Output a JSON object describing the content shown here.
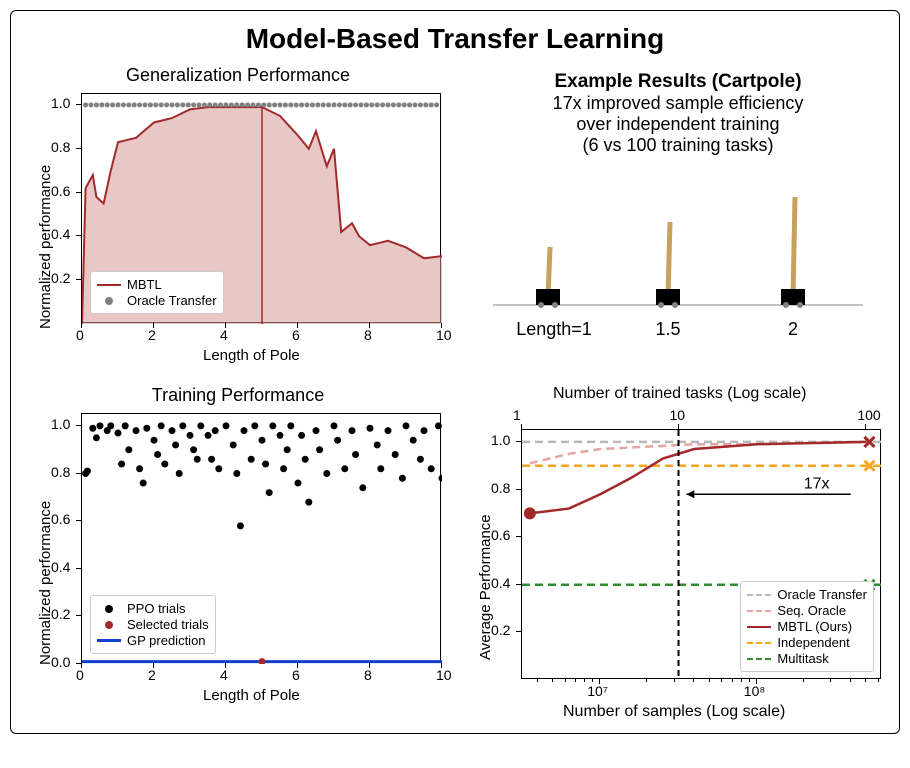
{
  "main_title": "Model-Based Transfer Learning",
  "top_left": {
    "title": "Generalization Performance",
    "xlabel": "Length of Pole",
    "ylabel": "Normalized performance",
    "xlim": [
      0,
      10
    ],
    "ylim": [
      0,
      1.05
    ],
    "xticks": [
      0,
      2,
      4,
      6,
      8,
      10
    ],
    "yticks": [
      0.2,
      0.4,
      0.6,
      0.8,
      1.0
    ],
    "mbtl_color": "#a22a2a",
    "mbtl_fill": "#d89999",
    "oracle_dot_color": "#808080",
    "vertical_line_x": 5.0,
    "mbtl_data": [
      [
        0,
        0
      ],
      [
        0.1,
        0.62
      ],
      [
        0.3,
        0.68
      ],
      [
        0.4,
        0.58
      ],
      [
        0.6,
        0.55
      ],
      [
        0.8,
        0.7
      ],
      [
        1.0,
        0.83
      ],
      [
        1.5,
        0.85
      ],
      [
        2.0,
        0.92
      ],
      [
        2.5,
        0.94
      ],
      [
        3.0,
        0.98
      ],
      [
        3.5,
        0.99
      ],
      [
        4.0,
        0.99
      ],
      [
        4.5,
        0.99
      ],
      [
        5.0,
        0.99
      ],
      [
        5.5,
        0.95
      ],
      [
        6.0,
        0.86
      ],
      [
        6.3,
        0.8
      ],
      [
        6.5,
        0.88
      ],
      [
        6.8,
        0.72
      ],
      [
        7.0,
        0.8
      ],
      [
        7.2,
        0.42
      ],
      [
        7.5,
        0.46
      ],
      [
        7.7,
        0.4
      ],
      [
        8.0,
        0.36
      ],
      [
        8.5,
        0.38
      ],
      [
        9.0,
        0.35
      ],
      [
        9.5,
        0.3
      ],
      [
        10.0,
        0.31
      ]
    ],
    "oracle_y": 1.0,
    "legend": {
      "mbtl": "MBTL",
      "oracle": "Oracle Transfer"
    }
  },
  "top_right": {
    "title": "Example Results (Cartpole)",
    "line1": "17x improved sample efficiency",
    "line2": "over independent training",
    "line3": "(6 vs 100 training tasks)",
    "cart_lengths": [
      1,
      1.5,
      2
    ],
    "cart_labels": [
      "Length=1",
      "1.5",
      "2"
    ],
    "pole_color": "#c9a15e",
    "cart_color": "#000000",
    "wheel_color": "#808080",
    "line_color": "#888888"
  },
  "bottom_left": {
    "title": "Training Performance",
    "xlabel": "Length of Pole",
    "ylabel": "Normalized performance",
    "xlim": [
      0,
      10
    ],
    "ylim": [
      0,
      1.05
    ],
    "xticks": [
      0,
      2,
      4,
      6,
      8,
      10
    ],
    "yticks": [
      0.0,
      0.2,
      0.4,
      0.6,
      0.8,
      1.0
    ],
    "dot_color": "#000000",
    "selected_color": "#a22a2a",
    "gp_color": "#1040d0",
    "scatter": [
      [
        0.1,
        0.8
      ],
      [
        0.15,
        0.81
      ],
      [
        0.3,
        0.99
      ],
      [
        0.4,
        0.95
      ],
      [
        0.5,
        1.0
      ],
      [
        0.7,
        0.98
      ],
      [
        0.8,
        1.0
      ],
      [
        1.0,
        0.97
      ],
      [
        1.1,
        0.84
      ],
      [
        1.2,
        1.0
      ],
      [
        1.3,
        0.9
      ],
      [
        1.5,
        0.98
      ],
      [
        1.6,
        0.82
      ],
      [
        1.7,
        0.76
      ],
      [
        1.8,
        0.99
      ],
      [
        2.0,
        0.94
      ],
      [
        2.1,
        0.88
      ],
      [
        2.2,
        1.0
      ],
      [
        2.3,
        0.84
      ],
      [
        2.5,
        0.98
      ],
      [
        2.6,
        0.92
      ],
      [
        2.7,
        0.8
      ],
      [
        2.8,
        1.0
      ],
      [
        3.0,
        0.96
      ],
      [
        3.1,
        0.9
      ],
      [
        3.2,
        0.86
      ],
      [
        3.3,
        1.0
      ],
      [
        3.5,
        0.96
      ],
      [
        3.6,
        0.86
      ],
      [
        3.7,
        0.98
      ],
      [
        3.8,
        0.82
      ],
      [
        4.0,
        1.0
      ],
      [
        4.2,
        0.92
      ],
      [
        4.3,
        0.8
      ],
      [
        4.4,
        0.58
      ],
      [
        4.5,
        0.98
      ],
      [
        4.7,
        0.86
      ],
      [
        4.8,
        1.0
      ],
      [
        5.0,
        0.94
      ],
      [
        5.1,
        0.84
      ],
      [
        5.2,
        0.72
      ],
      [
        5.3,
        1.0
      ],
      [
        5.5,
        0.96
      ],
      [
        5.6,
        0.82
      ],
      [
        5.7,
        0.9
      ],
      [
        5.8,
        1.0
      ],
      [
        6.0,
        0.76
      ],
      [
        6.1,
        0.96
      ],
      [
        6.2,
        0.86
      ],
      [
        6.3,
        0.68
      ],
      [
        6.5,
        0.98
      ],
      [
        6.6,
        0.9
      ],
      [
        6.8,
        0.8
      ],
      [
        7.0,
        1.0
      ],
      [
        7.1,
        0.94
      ],
      [
        7.3,
        0.82
      ],
      [
        7.5,
        0.98
      ],
      [
        7.6,
        0.88
      ],
      [
        7.8,
        0.74
      ],
      [
        8.0,
        0.99
      ],
      [
        8.2,
        0.92
      ],
      [
        8.3,
        0.82
      ],
      [
        8.5,
        0.98
      ],
      [
        8.7,
        0.88
      ],
      [
        8.9,
        0.78
      ],
      [
        9.0,
        1.0
      ],
      [
        9.2,
        0.94
      ],
      [
        9.4,
        0.86
      ],
      [
        9.5,
        0.98
      ],
      [
        9.7,
        0.82
      ],
      [
        9.9,
        1.0
      ],
      [
        10.0,
        0.78
      ]
    ],
    "selected": [
      [
        5.0,
        0.01
      ]
    ],
    "gp_line": [
      [
        0,
        0.01
      ],
      [
        4.5,
        0.01
      ],
      [
        5.0,
        0.01
      ],
      [
        5.5,
        0.01
      ],
      [
        10,
        0.01
      ]
    ],
    "legend": {
      "ppo": "PPO trials",
      "selected": "Selected trials",
      "gp": "GP prediction"
    }
  },
  "bottom_right": {
    "ylabel": "Average Performance",
    "xlabel_bottom": "Number of samples (Log scale)",
    "xlabel_top": "Number of trained tasks (Log scale)",
    "ylim": [
      0,
      1.05
    ],
    "yticks": [
      0.2,
      0.4,
      0.6,
      0.8,
      1.0
    ],
    "xlim_log": [
      6.5,
      8.8
    ],
    "xticks_bottom": [
      {
        "pos": 7,
        "label": "10⁷"
      },
      {
        "pos": 8,
        "label": "10⁸"
      }
    ],
    "xticks_top": [
      {
        "pos": 6.5,
        "label": "1"
      },
      {
        "pos": 7.5,
        "label": "10"
      },
      {
        "pos": 8.7,
        "label": "100"
      }
    ],
    "colors": {
      "oracle": "#b8b8b8",
      "seqoracle": "#e5a5a5",
      "mbtl": "#a22a2a",
      "independent": "#f5a623",
      "multitask": "#2e8b2e",
      "vline": "#000000"
    },
    "oracle_y": 1.0,
    "independent_y": 0.9,
    "multitask_y": 0.4,
    "seqoracle_data": [
      [
        6.55,
        0.91
      ],
      [
        6.8,
        0.95
      ],
      [
        7.0,
        0.97
      ],
      [
        7.3,
        0.98
      ],
      [
        7.6,
        0.99
      ],
      [
        8.0,
        0.99
      ],
      [
        8.7,
        1.0
      ]
    ],
    "mbtl_data": [
      [
        6.55,
        0.7
      ],
      [
        6.8,
        0.72
      ],
      [
        7.0,
        0.78
      ],
      [
        7.2,
        0.85
      ],
      [
        7.4,
        0.93
      ],
      [
        7.6,
        0.97
      ],
      [
        8.0,
        0.99
      ],
      [
        8.7,
        1.0
      ]
    ],
    "mbtl_start_point": [
      6.55,
      0.7
    ],
    "vline_x": 7.5,
    "arrow": {
      "from_x": 8.6,
      "to_x": 7.55,
      "y": 0.78,
      "label": "17x"
    },
    "end_markers": [
      {
        "x": 8.72,
        "y": 1.0,
        "color": "#b8b8b8"
      },
      {
        "x": 8.72,
        "y": 1.0,
        "color": "#e5a5a5"
      },
      {
        "x": 8.72,
        "y": 1.0,
        "color": "#a22a2a"
      },
      {
        "x": 8.72,
        "y": 0.9,
        "color": "#f5a623"
      },
      {
        "x": 8.72,
        "y": 0.4,
        "color": "#2e8b2e"
      }
    ],
    "legend": {
      "oracle": "Oracle Transfer",
      "seqoracle": "Seq. Oracle",
      "mbtl": "MBTL (Ours)",
      "independent": "Independent",
      "multitask": "Multitask"
    }
  }
}
